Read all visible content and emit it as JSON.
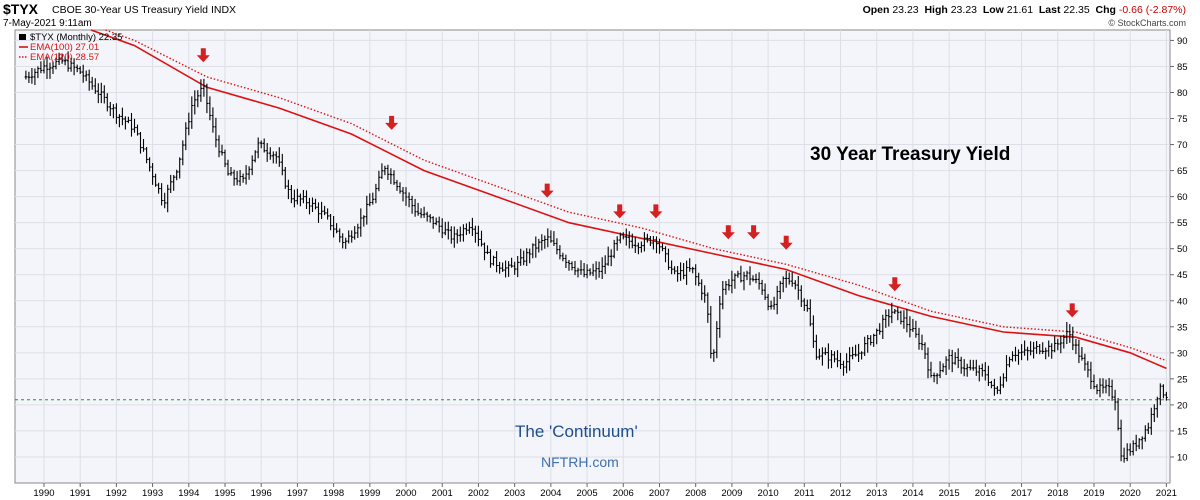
{
  "header": {
    "ticker": "$TYX",
    "description": "CBOE 30-Year US Treasury Yield",
    "exchange": "INDX",
    "date": "7-May-2021 9:11am",
    "open_label": "Open",
    "open": "23.23",
    "high_label": "High",
    "high": "23.23",
    "low_label": "Low",
    "low": "21.61",
    "last_label": "Last",
    "last": "22.35",
    "chg_label": "Chg",
    "chg": "-0.66 (-2.87%)",
    "chg_color": "#cc0000",
    "copyright": "© StockCharts.com"
  },
  "legend": {
    "price": "$TYX (Monthly) 22.35",
    "ema100": "EMA(100) 27.01",
    "ema120": "EMA(120) 28.57"
  },
  "annotations": {
    "title": "30 Year Treasury Yield",
    "continuum": "The 'Continuum'",
    "watermark": "NFTRH.com"
  },
  "colors": {
    "background": "#f3f5fa",
    "price": "#000000",
    "ema": "#dd1111",
    "arrow": "#d42020",
    "support": "#1a9e1a",
    "continuum": "#1f4e8c",
    "watermark": "#3f6fb0"
  },
  "chart_data": {
    "type": "line",
    "title": "30 Year Treasury Yield",
    "xlabel": "",
    "ylabel": "",
    "x_tick_labels": [
      "1990",
      "1991",
      "1992",
      "1993",
      "1994",
      "1995",
      "1996",
      "1997",
      "1998",
      "1999",
      "2000",
      "2001",
      "2002",
      "2003",
      "2004",
      "2005",
      "2006",
      "2007",
      "2008",
      "2009",
      "2010",
      "2011",
      "2012",
      "2013",
      "2014",
      "2015",
      "2016",
      "2017",
      "2018",
      "2019",
      "2020",
      "2021"
    ],
    "y_tick_labels": [
      "10",
      "15",
      "20",
      "25",
      "30",
      "35",
      "40",
      "45",
      "50",
      "55",
      "60",
      "65",
      "70",
      "75",
      "80",
      "85",
      "90"
    ],
    "xlim": [
      1989.7,
      2021.6
    ],
    "ylim": [
      5,
      92
    ],
    "grid": true,
    "y_axis_side": "right",
    "legend_position": "top-left",
    "series": [
      {
        "name": "$TYX (Monthly) 22.35",
        "style": "price-bars",
        "x": [
          1990.0,
          1990.5,
          1991.0,
          1991.5,
          1992.0,
          1992.5,
          1993.0,
          1993.4,
          1993.8,
          1994.2,
          1994.6,
          1994.9,
          1995.2,
          1995.6,
          1996.0,
          1996.4,
          1996.9,
          1997.3,
          1997.8,
          1998.3,
          1998.8,
          1999.2,
          1999.6,
          1999.9,
          2000.3,
          2000.8,
          2001.3,
          2001.8,
          2002.3,
          2002.8,
          2003.3,
          2003.6,
          2004.0,
          2004.4,
          2004.9,
          2005.4,
          2005.9,
          2006.4,
          2006.9,
          2007.4,
          2007.9,
          2008.4,
          2008.8,
          2008.95,
          2009.2,
          2009.5,
          2009.9,
          2010.3,
          2010.6,
          2010.9,
          2011.2,
          2011.6,
          2011.8,
          2012.3,
          2012.6,
          2013.0,
          2013.5,
          2013.9,
          2014.3,
          2014.8,
          2015.0,
          2015.5,
          2016.0,
          2016.5,
          2016.8,
          2017.2,
          2017.6,
          2018.0,
          2018.4,
          2018.8,
          2019.2,
          2019.6,
          2019.9,
          2020.1,
          2020.25,
          2020.6,
          2021.0,
          2021.3,
          2021.5
        ],
        "y": [
          83,
          85,
          86,
          84,
          80,
          76,
          73,
          66,
          59,
          66,
          78,
          81,
          72,
          64,
          63,
          70,
          68,
          60,
          59,
          56,
          51,
          55,
          60,
          66,
          62,
          57,
          55,
          52,
          55,
          48,
          46,
          47,
          50,
          52,
          48,
          45,
          46,
          52,
          51,
          52,
          45,
          46,
          40,
          27,
          42,
          44,
          45,
          43,
          38,
          44,
          44,
          38,
          30,
          29,
          28,
          30,
          34,
          38,
          36,
          31,
          25,
          29,
          27,
          26,
          22,
          30,
          30,
          31,
          31,
          34,
          28,
          23,
          23,
          21,
          10,
          12,
          16,
          23,
          22
        ]
      },
      {
        "name": "EMA(100) 27.01",
        "style": "solid",
        "x": [
          1991.8,
          1993.0,
          1995.0,
          1997.0,
          1999.0,
          2001.0,
          2003.0,
          2005.0,
          2007.0,
          2009.0,
          2011.0,
          2013.0,
          2015.0,
          2017.0,
          2019.0,
          2020.5,
          2021.5
        ],
        "y": [
          92,
          89,
          81,
          77,
          72,
          65,
          60,
          55,
          52,
          49,
          46,
          41,
          37,
          34,
          33,
          30,
          27
        ]
      },
      {
        "name": "EMA(120) 28.57",
        "style": "dotted",
        "x": [
          1992.2,
          1993.0,
          1995.0,
          1997.0,
          1999.0,
          2001.0,
          2003.0,
          2005.0,
          2007.0,
          2009.0,
          2011.0,
          2013.0,
          2015.0,
          2017.0,
          2019.0,
          2020.5,
          2021.5
        ],
        "y": [
          92,
          90,
          83,
          79,
          74,
          67,
          62,
          57,
          54,
          50,
          47,
          43,
          38,
          35,
          34,
          31,
          28.5
        ]
      }
    ],
    "support_line": {
      "y": 21,
      "style": "dashed"
    },
    "arrows": [
      {
        "x": 1994.9,
        "y": 86
      },
      {
        "x": 2000.1,
        "y": 73
      },
      {
        "x": 2004.4,
        "y": 60
      },
      {
        "x": 2006.4,
        "y": 56
      },
      {
        "x": 2007.4,
        "y": 56
      },
      {
        "x": 2009.4,
        "y": 52
      },
      {
        "x": 2010.1,
        "y": 52
      },
      {
        "x": 2011.0,
        "y": 50
      },
      {
        "x": 2014.0,
        "y": 42
      },
      {
        "x": 2018.9,
        "y": 37
      }
    ]
  }
}
